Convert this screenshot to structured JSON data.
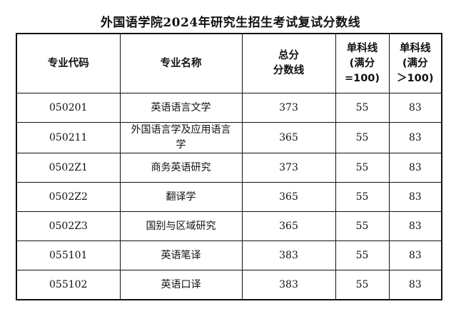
{
  "title": "外国语学院2024年研究生招生考试复试分数线",
  "headers": {
    "code": "专业代码",
    "name": "专业名称",
    "total_line1": "总分",
    "total_line2": "分数线",
    "single100_line1": "单科线",
    "single100_line2": "(满分",
    "single100_line3": "=100)",
    "single_gt100_line1": "单科线",
    "single_gt100_line2": "(满分",
    "single_gt100_line3": "＞100)"
  },
  "rows": [
    {
      "code": "050201",
      "name": "英语语言文学",
      "total": "373",
      "single100": "55",
      "single_gt100": "83"
    },
    {
      "code": "050211",
      "name": "外国语言学及应用语言学",
      "total": "365",
      "single100": "55",
      "single_gt100": "83"
    },
    {
      "code": "0502Z1",
      "name": "商务英语研究",
      "total": "373",
      "single100": "55",
      "single_gt100": "83"
    },
    {
      "code": "0502Z2",
      "name": "翻译学",
      "total": "365",
      "single100": "55",
      "single_gt100": "83"
    },
    {
      "code": "0502Z3",
      "name": "国别与区域研究",
      "total": "365",
      "single100": "55",
      "single_gt100": "83"
    },
    {
      "code": "055101",
      "name": "英语笔译",
      "total": "383",
      "single100": "55",
      "single_gt100": "83"
    },
    {
      "code": "055102",
      "name": "英语口译",
      "total": "383",
      "single100": "55",
      "single_gt100": "83"
    }
  ]
}
